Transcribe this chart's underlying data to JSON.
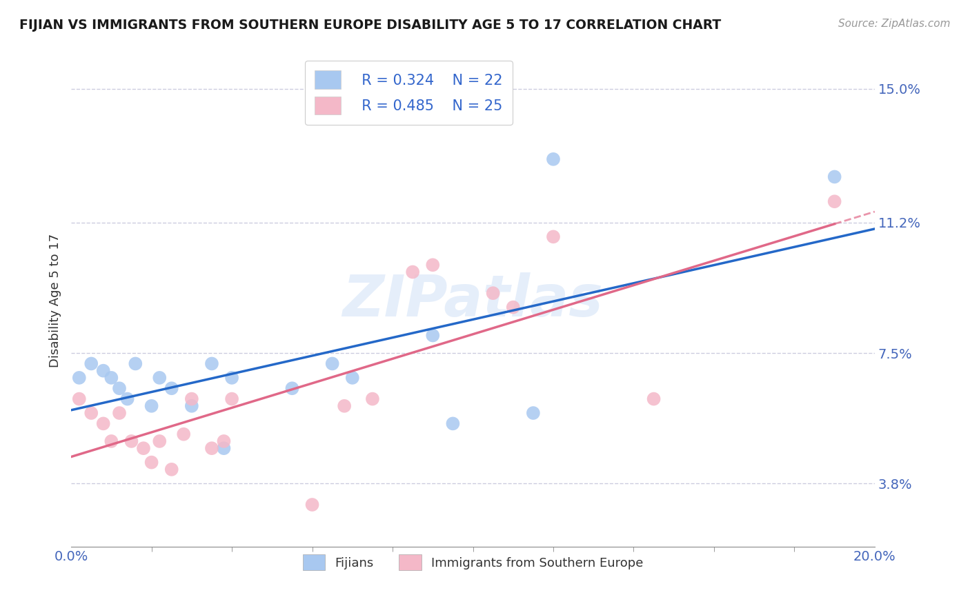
{
  "title": "FIJIAN VS IMMIGRANTS FROM SOUTHERN EUROPE DISABILITY AGE 5 TO 17 CORRELATION CHART",
  "source": "Source: ZipAtlas.com",
  "ylabel": "Disability Age 5 to 17",
  "xlim": [
    0.0,
    0.2
  ],
  "ylim": [
    0.02,
    0.16
  ],
  "yticks": [
    0.038,
    0.075,
    0.112,
    0.15
  ],
  "ytick_labels": [
    "3.8%",
    "7.5%",
    "11.2%",
    "15.0%"
  ],
  "xtick_left_label": "0.0%",
  "xtick_right_label": "20.0%",
  "fijian_color": "#a8c8f0",
  "immigrant_color": "#f4b8c8",
  "trend_blue": "#2468c8",
  "trend_pink": "#e06888",
  "legend_r1": "R = 0.324",
  "legend_n1": "N = 22",
  "legend_r2": "R = 0.485",
  "legend_n2": "N = 25",
  "fijian_x": [
    0.002,
    0.005,
    0.008,
    0.01,
    0.012,
    0.014,
    0.016,
    0.02,
    0.022,
    0.025,
    0.03,
    0.035,
    0.038,
    0.04,
    0.055,
    0.065,
    0.07,
    0.09,
    0.095,
    0.115,
    0.12,
    0.19
  ],
  "fijian_y": [
    0.068,
    0.072,
    0.07,
    0.068,
    0.065,
    0.062,
    0.072,
    0.06,
    0.068,
    0.065,
    0.06,
    0.072,
    0.048,
    0.068,
    0.065,
    0.072,
    0.068,
    0.08,
    0.055,
    0.058,
    0.13,
    0.125
  ],
  "immigrant_x": [
    0.002,
    0.005,
    0.008,
    0.01,
    0.012,
    0.015,
    0.018,
    0.02,
    0.022,
    0.025,
    0.028,
    0.03,
    0.035,
    0.038,
    0.04,
    0.06,
    0.068,
    0.075,
    0.085,
    0.09,
    0.105,
    0.11,
    0.12,
    0.145,
    0.19
  ],
  "immigrant_y": [
    0.062,
    0.058,
    0.055,
    0.05,
    0.058,
    0.05,
    0.048,
    0.044,
    0.05,
    0.042,
    0.052,
    0.062,
    0.048,
    0.05,
    0.062,
    0.032,
    0.06,
    0.062,
    0.098,
    0.1,
    0.092,
    0.088,
    0.108,
    0.062,
    0.118
  ],
  "watermark": "ZIPatlas",
  "background_color": "#ffffff",
  "grid_color": "#c0c0d8",
  "title_color": "#1a1a1a",
  "tick_color": "#4466bb",
  "legend_label_color": "#3366cc",
  "ylabel_color": "#333333"
}
